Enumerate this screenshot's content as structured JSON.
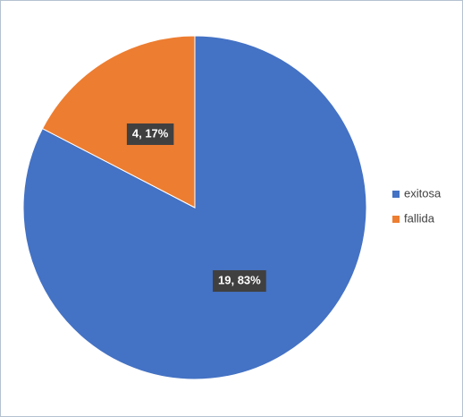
{
  "chart_data": {
    "type": "pie",
    "categories": [
      "exitosa",
      "fallida"
    ],
    "values": [
      19,
      4
    ],
    "value_labels": [
      "19, 83%",
      "4, 17%"
    ],
    "colors": [
      "#4472c4",
      "#ed7d31"
    ],
    "legend": "right"
  }
}
